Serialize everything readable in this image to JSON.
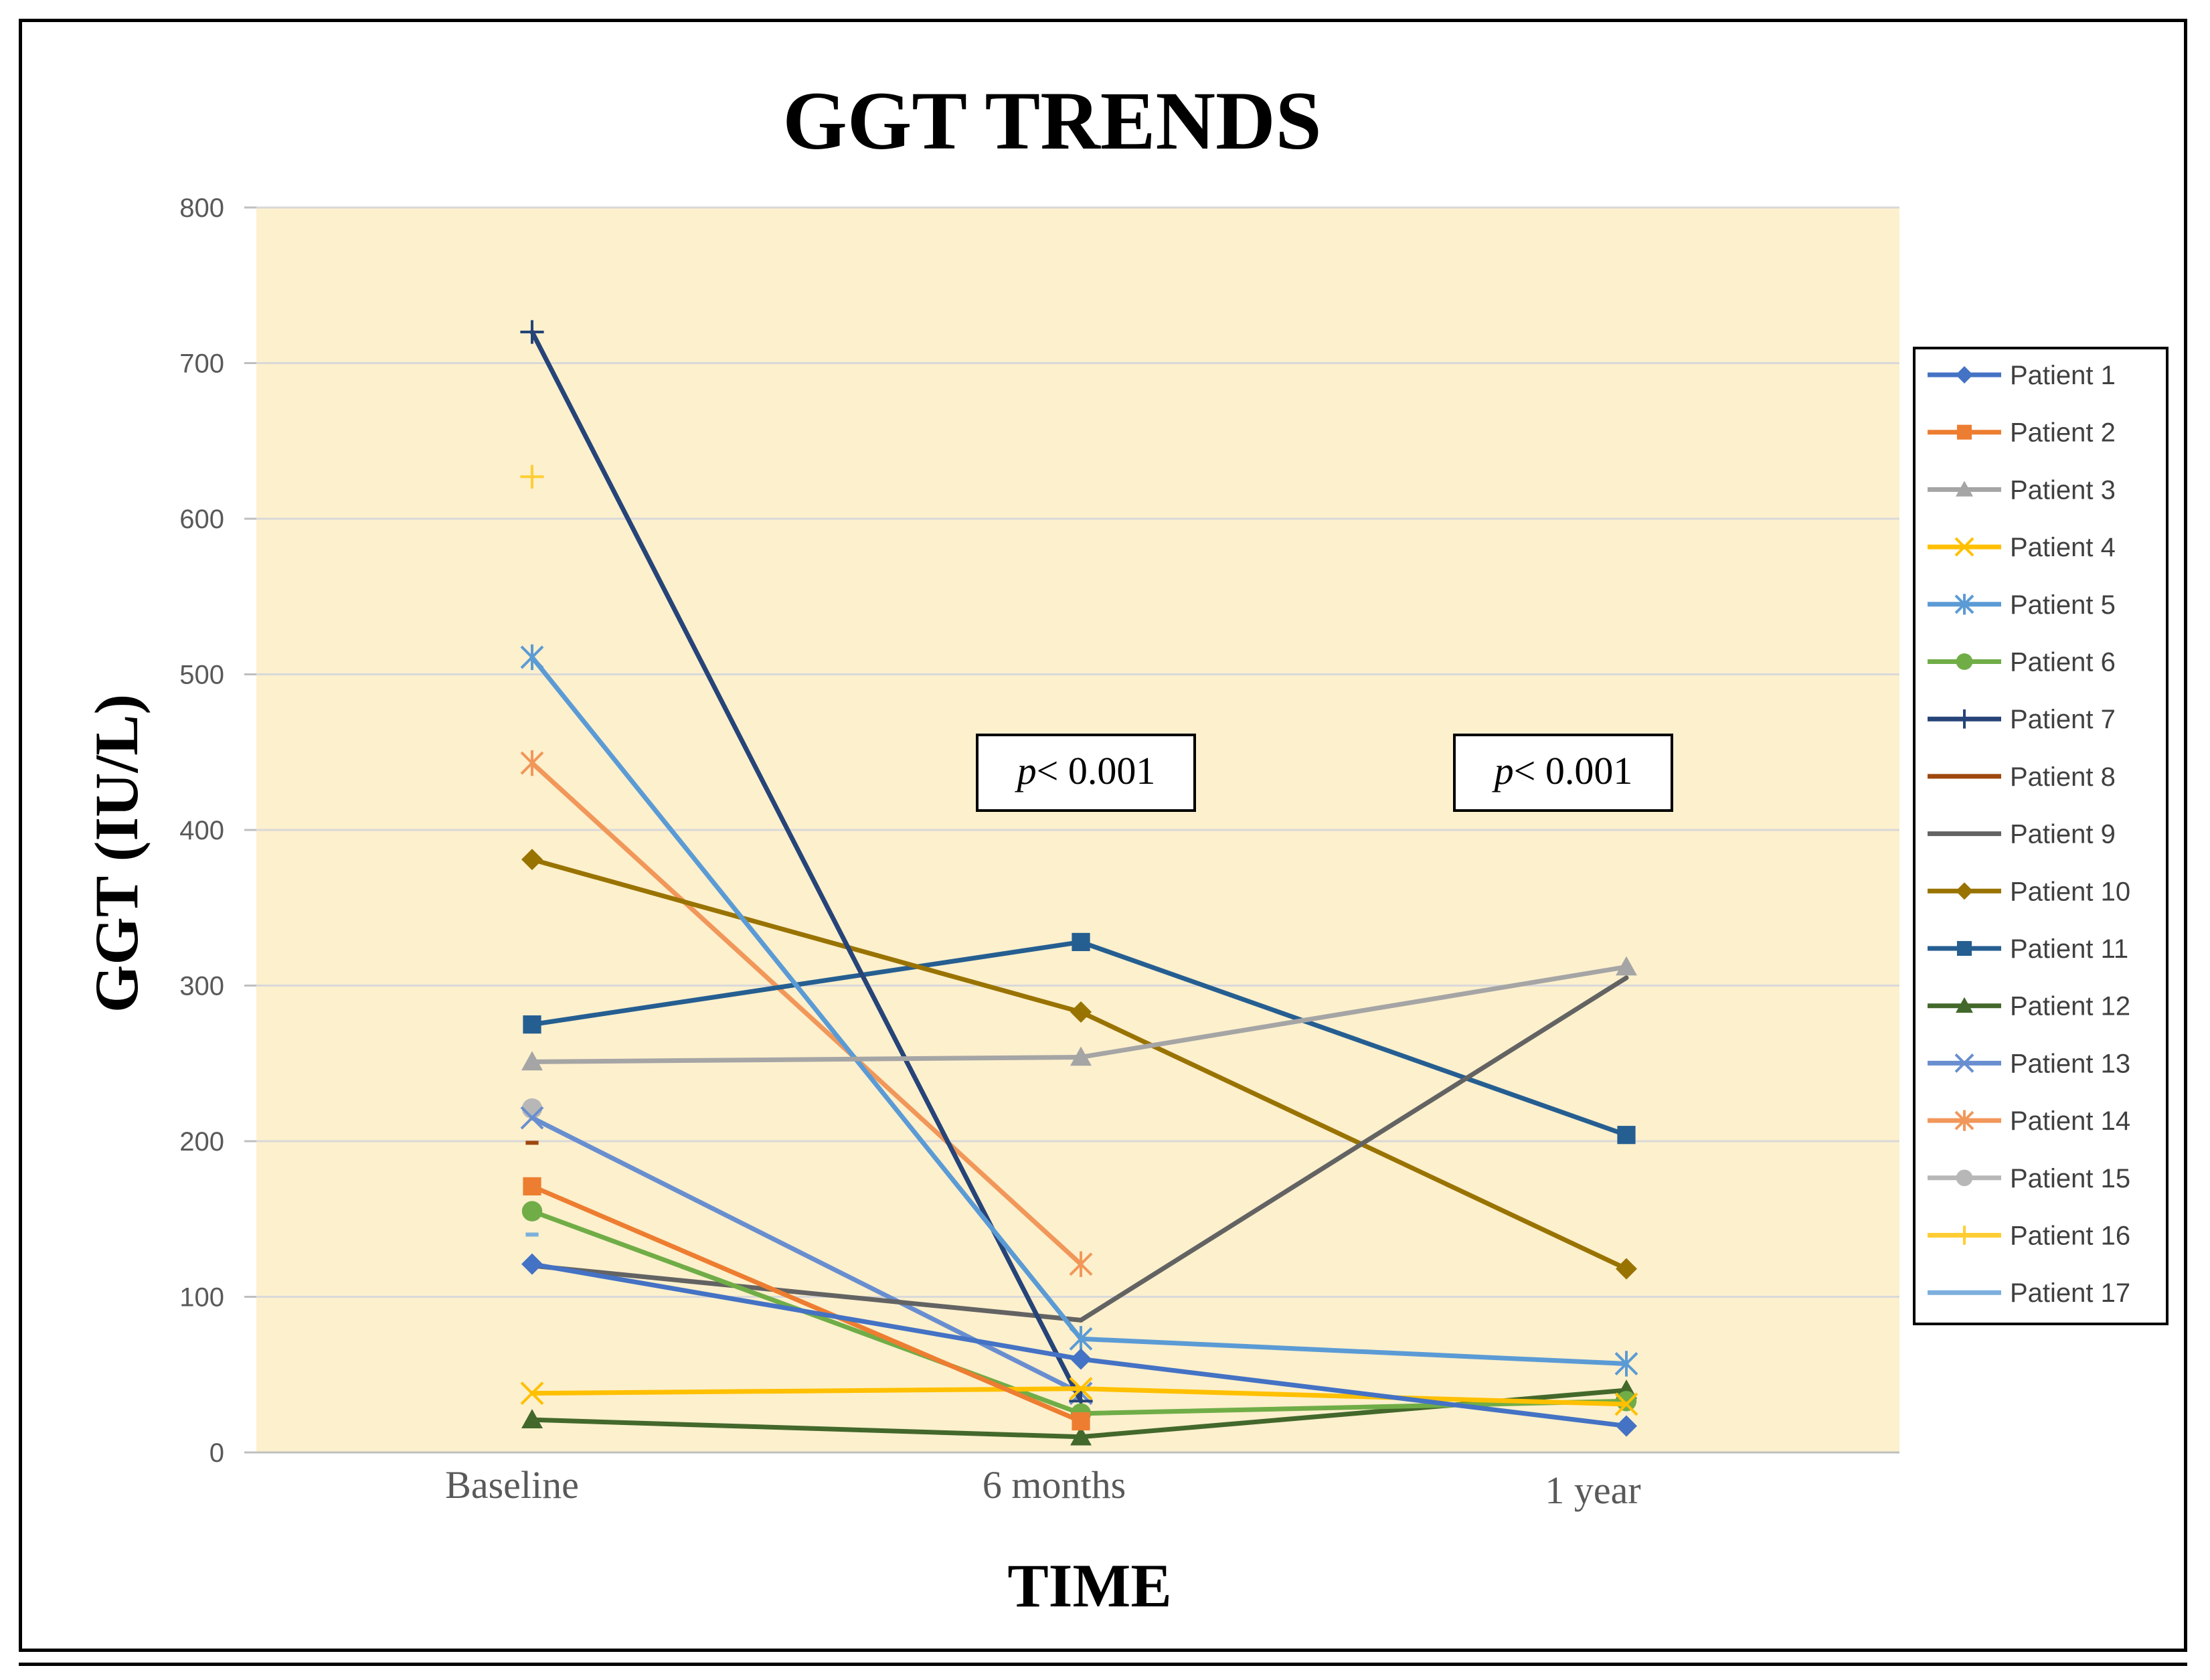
{
  "chart_data": {
    "type": "line",
    "title": "GGT TRENDS",
    "xlabel": "TIME",
    "ylabel": "GGT (IU/L)",
    "categories": [
      "Baseline",
      "6 months",
      "1 year"
    ],
    "ylim": [
      0,
      800
    ],
    "yticks": [
      0,
      100,
      200,
      300,
      400,
      500,
      600,
      700,
      800
    ],
    "grid": true,
    "legend_position": "right",
    "plot_background": "#fdf0cd",
    "annotations": [
      {
        "text_italic": "p",
        "text": "< 0.001",
        "category": "6 months"
      },
      {
        "text_italic": "p",
        "text": "< 0.001",
        "category": "1 year"
      }
    ],
    "series": [
      {
        "name": "Patient 1",
        "color": "#4472c4",
        "marker": "diamond",
        "values": [
          121,
          60,
          17
        ]
      },
      {
        "name": "Patient 2",
        "color": "#ed7d31",
        "marker": "square",
        "values": [
          171,
          20,
          null
        ]
      },
      {
        "name": "Patient 3",
        "color": "#a5a5a5",
        "marker": "triangle",
        "values": [
          251,
          254,
          312
        ]
      },
      {
        "name": "Patient 4",
        "color": "#ffc000",
        "marker": "x",
        "values": [
          38,
          41,
          31
        ]
      },
      {
        "name": "Patient 5",
        "color": "#5b9bd5",
        "marker": "star",
        "values": [
          511,
          73,
          57
        ]
      },
      {
        "name": "Patient 6",
        "color": "#70ad47",
        "marker": "circle",
        "values": [
          155,
          25,
          33
        ]
      },
      {
        "name": "Patient 7",
        "color": "#264478",
        "marker": "plus",
        "values": [
          720,
          33,
          null
        ]
      },
      {
        "name": "Patient 8",
        "color": "#9e480e",
        "marker": "dash",
        "values": [
          199,
          null,
          null
        ]
      },
      {
        "name": "Patient 9",
        "color": "#636363",
        "marker": "none",
        "values": [
          120,
          85,
          305
        ]
      },
      {
        "name": "Patient 10",
        "color": "#997300",
        "marker": "diamond",
        "values": [
          381,
          283,
          118
        ]
      },
      {
        "name": "Patient 11",
        "color": "#255e91",
        "marker": "square",
        "values": [
          275,
          328,
          204
        ]
      },
      {
        "name": "Patient 12",
        "color": "#43682b",
        "marker": "triangle",
        "values": [
          21,
          10,
          40
        ]
      },
      {
        "name": "Patient 13",
        "color": "#698ed0",
        "marker": "x",
        "values": [
          215,
          38,
          null
        ]
      },
      {
        "name": "Patient 14",
        "color": "#f1975a",
        "marker": "star",
        "values": [
          443,
          121,
          null
        ]
      },
      {
        "name": "Patient 15",
        "color": "#b7b7b7",
        "marker": "circle",
        "values": [
          221,
          null,
          null
        ]
      },
      {
        "name": "Patient 16",
        "color": "#ffcd33",
        "marker": "plus",
        "values": [
          627,
          null,
          null
        ]
      },
      {
        "name": "Patient 17",
        "color": "#7cafdd",
        "marker": "dash",
        "values": [
          140,
          null,
          null
        ]
      }
    ]
  }
}
